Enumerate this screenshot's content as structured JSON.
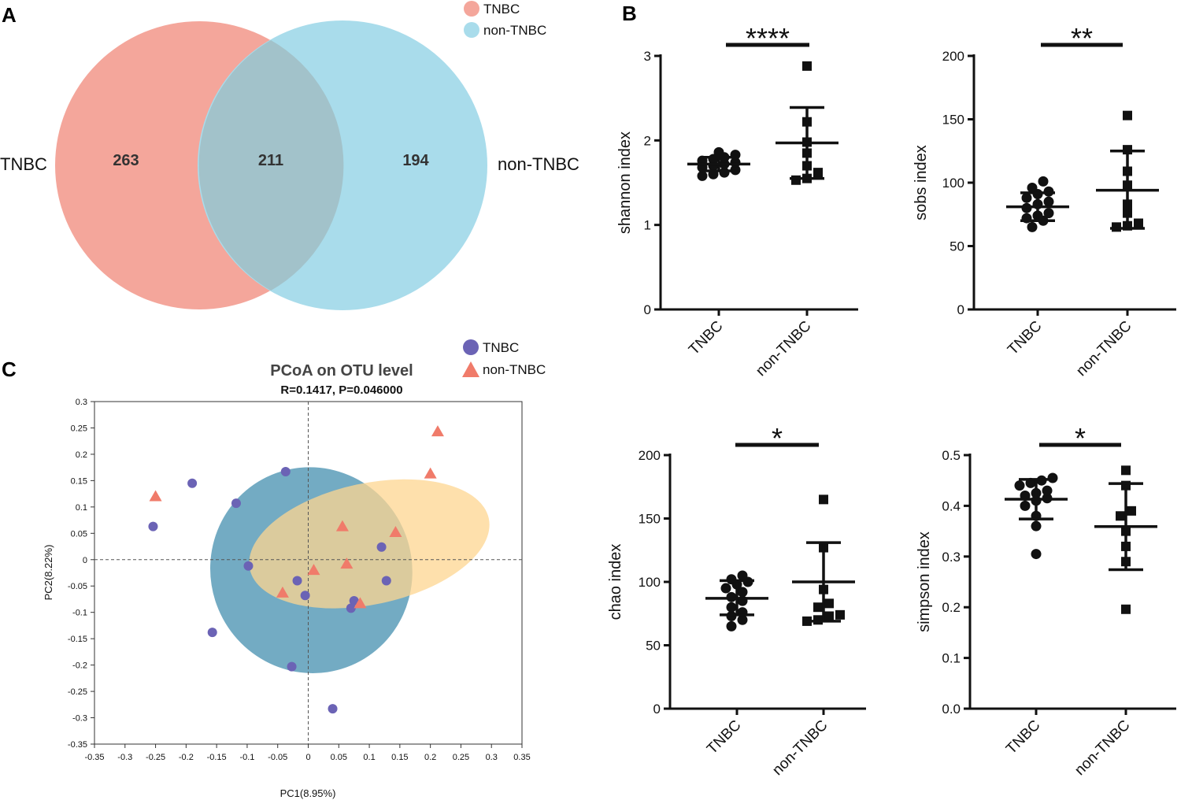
{
  "panels": {
    "a": "A",
    "b": "B",
    "c": "C"
  },
  "colors": {
    "tnbc_venn": "#f4a69b",
    "nontnbc_venn": "#a9dceb",
    "overlap": "#a2c2ca",
    "pcoa_tnbc": "#6b63b5",
    "pcoa_nontnbc": "#f07b6a",
    "ellipse_tnbc": "#5b9cb8",
    "ellipse_nontnbc": "#fdd690"
  },
  "venn": {
    "legend": [
      "TNBC",
      "non-TNBC"
    ],
    "left_label": "TNBC",
    "right_label": "non-TNBC",
    "only_tnbc": "263",
    "shared": "211",
    "only_nontnbc": "194"
  },
  "chart_data": [
    {
      "type": "scatter",
      "id": "shannon",
      "ylabel": "shannon index",
      "categories": [
        "TNBC",
        "non-TNBC"
      ],
      "ylim": [
        0,
        3
      ],
      "yticks": [
        "0",
        "1",
        "2",
        "3"
      ],
      "significance": "****",
      "series": [
        {
          "name": "TNBC",
          "values": [
            1.58,
            1.6,
            1.62,
            1.65,
            1.68,
            1.7,
            1.72,
            1.74,
            1.76,
            1.78,
            1.8,
            1.83,
            1.86
          ],
          "mean": 1.72,
          "sd_low": 1.64,
          "sd_high": 1.8
        },
        {
          "name": "non-TNBC",
          "values": [
            1.53,
            1.55,
            1.62,
            1.7,
            1.85,
            1.98,
            2.22,
            2.88
          ],
          "mean": 1.97,
          "sd_low": 1.55,
          "sd_high": 2.39
        }
      ]
    },
    {
      "type": "scatter",
      "id": "sobs",
      "ylabel": "sobs index",
      "categories": [
        "TNBC",
        "non-TNBC"
      ],
      "ylim": [
        0,
        200
      ],
      "yticks": [
        "0",
        "50",
        "100",
        "150",
        "200"
      ],
      "significance": "**",
      "series": [
        {
          "name": "TNBC",
          "values": [
            65,
            70,
            72,
            74,
            76,
            80,
            83,
            85,
            88,
            91,
            93,
            96,
            101
          ],
          "mean": 81,
          "sd_low": 70,
          "sd_high": 92
        },
        {
          "name": "non-TNBC",
          "values": [
            65,
            66,
            68,
            76,
            83,
            98,
            109,
            126,
            153
          ],
          "mean": 94,
          "sd_low": 64,
          "sd_high": 125
        }
      ]
    },
    {
      "type": "scatter",
      "id": "chao",
      "ylabel": "chao index",
      "categories": [
        "TNBC",
        "non-TNBC"
      ],
      "ylim": [
        0,
        200
      ],
      "yticks": [
        "0",
        "50",
        "100",
        "150",
        "200"
      ],
      "significance": "*",
      "series": [
        {
          "name": "TNBC",
          "values": [
            65,
            70,
            73,
            76,
            80,
            85,
            88,
            92,
            95,
            98,
            100,
            102,
            105
          ],
          "mean": 87,
          "sd_low": 74,
          "sd_high": 101
        },
        {
          "name": "non-TNBC",
          "values": [
            69,
            70,
            73,
            74,
            80,
            83,
            94,
            127,
            165
          ],
          "mean": 100,
          "sd_low": 69,
          "sd_high": 131
        }
      ]
    },
    {
      "type": "scatter",
      "id": "simpson",
      "ylabel": "simpson index",
      "categories": [
        "TNBC",
        "non-TNBC"
      ],
      "ylim": [
        0.0,
        0.5
      ],
      "yticks": [
        "0.0",
        "0.1",
        "0.2",
        "0.3",
        "0.4",
        "0.5"
      ],
      "significance": "*",
      "series": [
        {
          "name": "TNBC",
          "values": [
            0.305,
            0.36,
            0.38,
            0.4,
            0.41,
            0.415,
            0.42,
            0.425,
            0.43,
            0.44,
            0.445,
            0.45,
            0.455
          ],
          "mean": 0.413,
          "sd_low": 0.374,
          "sd_high": 0.452
        },
        {
          "name": "non-TNBC",
          "values": [
            0.196,
            0.29,
            0.32,
            0.35,
            0.38,
            0.39,
            0.44,
            0.47
          ],
          "mean": 0.359,
          "sd_low": 0.274,
          "sd_high": 0.444
        }
      ]
    },
    {
      "type": "scatter",
      "id": "pcoa",
      "title": "PCoA on OTU level",
      "subtitle": "R=0.1417, P=0.046000",
      "xlabel": "PC1(8.95%)",
      "ylabel": "PC2(8.22%)",
      "xlim": [
        -0.35,
        0.35
      ],
      "ylim": [
        -0.35,
        0.3
      ],
      "xticks": [
        "-0.35",
        "-0.3",
        "-0.25",
        "-0.2",
        "-0.15",
        "-0.1",
        "-0.05",
        "0",
        "0.05",
        "0.1",
        "0.15",
        "0.2",
        "0.25",
        "0.3",
        "0.35"
      ],
      "yticks": [
        "-0.35",
        "-0.3",
        "-0.25",
        "-0.2",
        "-0.15",
        "-0.1",
        "-0.05",
        "0",
        "0.05",
        "0.1",
        "0.15",
        "0.2",
        "0.25",
        "0.3"
      ],
      "legend": [
        "TNBC",
        "non-TNBC"
      ],
      "series": [
        {
          "name": "TNBC",
          "marker": "circle",
          "points": [
            [
              -0.254,
              0.063
            ],
            [
              -0.19,
              0.145
            ],
            [
              -0.157,
              -0.138
            ],
            [
              -0.118,
              0.107
            ],
            [
              -0.098,
              -0.012
            ],
            [
              -0.037,
              0.167
            ],
            [
              -0.027,
              -0.203
            ],
            [
              -0.018,
              -0.04
            ],
            [
              -0.005,
              -0.068
            ],
            [
              0.04,
              -0.283
            ],
            [
              0.07,
              -0.092
            ],
            [
              0.075,
              -0.078
            ],
            [
              0.12,
              0.024
            ],
            [
              0.128,
              -0.04
            ]
          ]
        },
        {
          "name": "non-TNBC",
          "marker": "triangle",
          "points": [
            [
              -0.25,
              0.12
            ],
            [
              -0.042,
              -0.063
            ],
            [
              0.009,
              -0.02
            ],
            [
              0.056,
              0.063
            ],
            [
              0.063,
              -0.008
            ],
            [
              0.085,
              -0.083
            ],
            [
              0.143,
              0.052
            ],
            [
              0.2,
              0.163
            ],
            [
              0.212,
              0.243
            ]
          ]
        }
      ],
      "ellipses": [
        {
          "name": "TNBC",
          "center": [
            0.005,
            -0.02
          ],
          "rx": 0.165,
          "ry": 0.196,
          "rotate_deg": -20
        },
        {
          "name": "non-TNBC",
          "center": [
            0.1,
            0.03
          ],
          "rx": 0.2,
          "ry": 0.115,
          "rotate_deg": -12
        }
      ]
    }
  ]
}
